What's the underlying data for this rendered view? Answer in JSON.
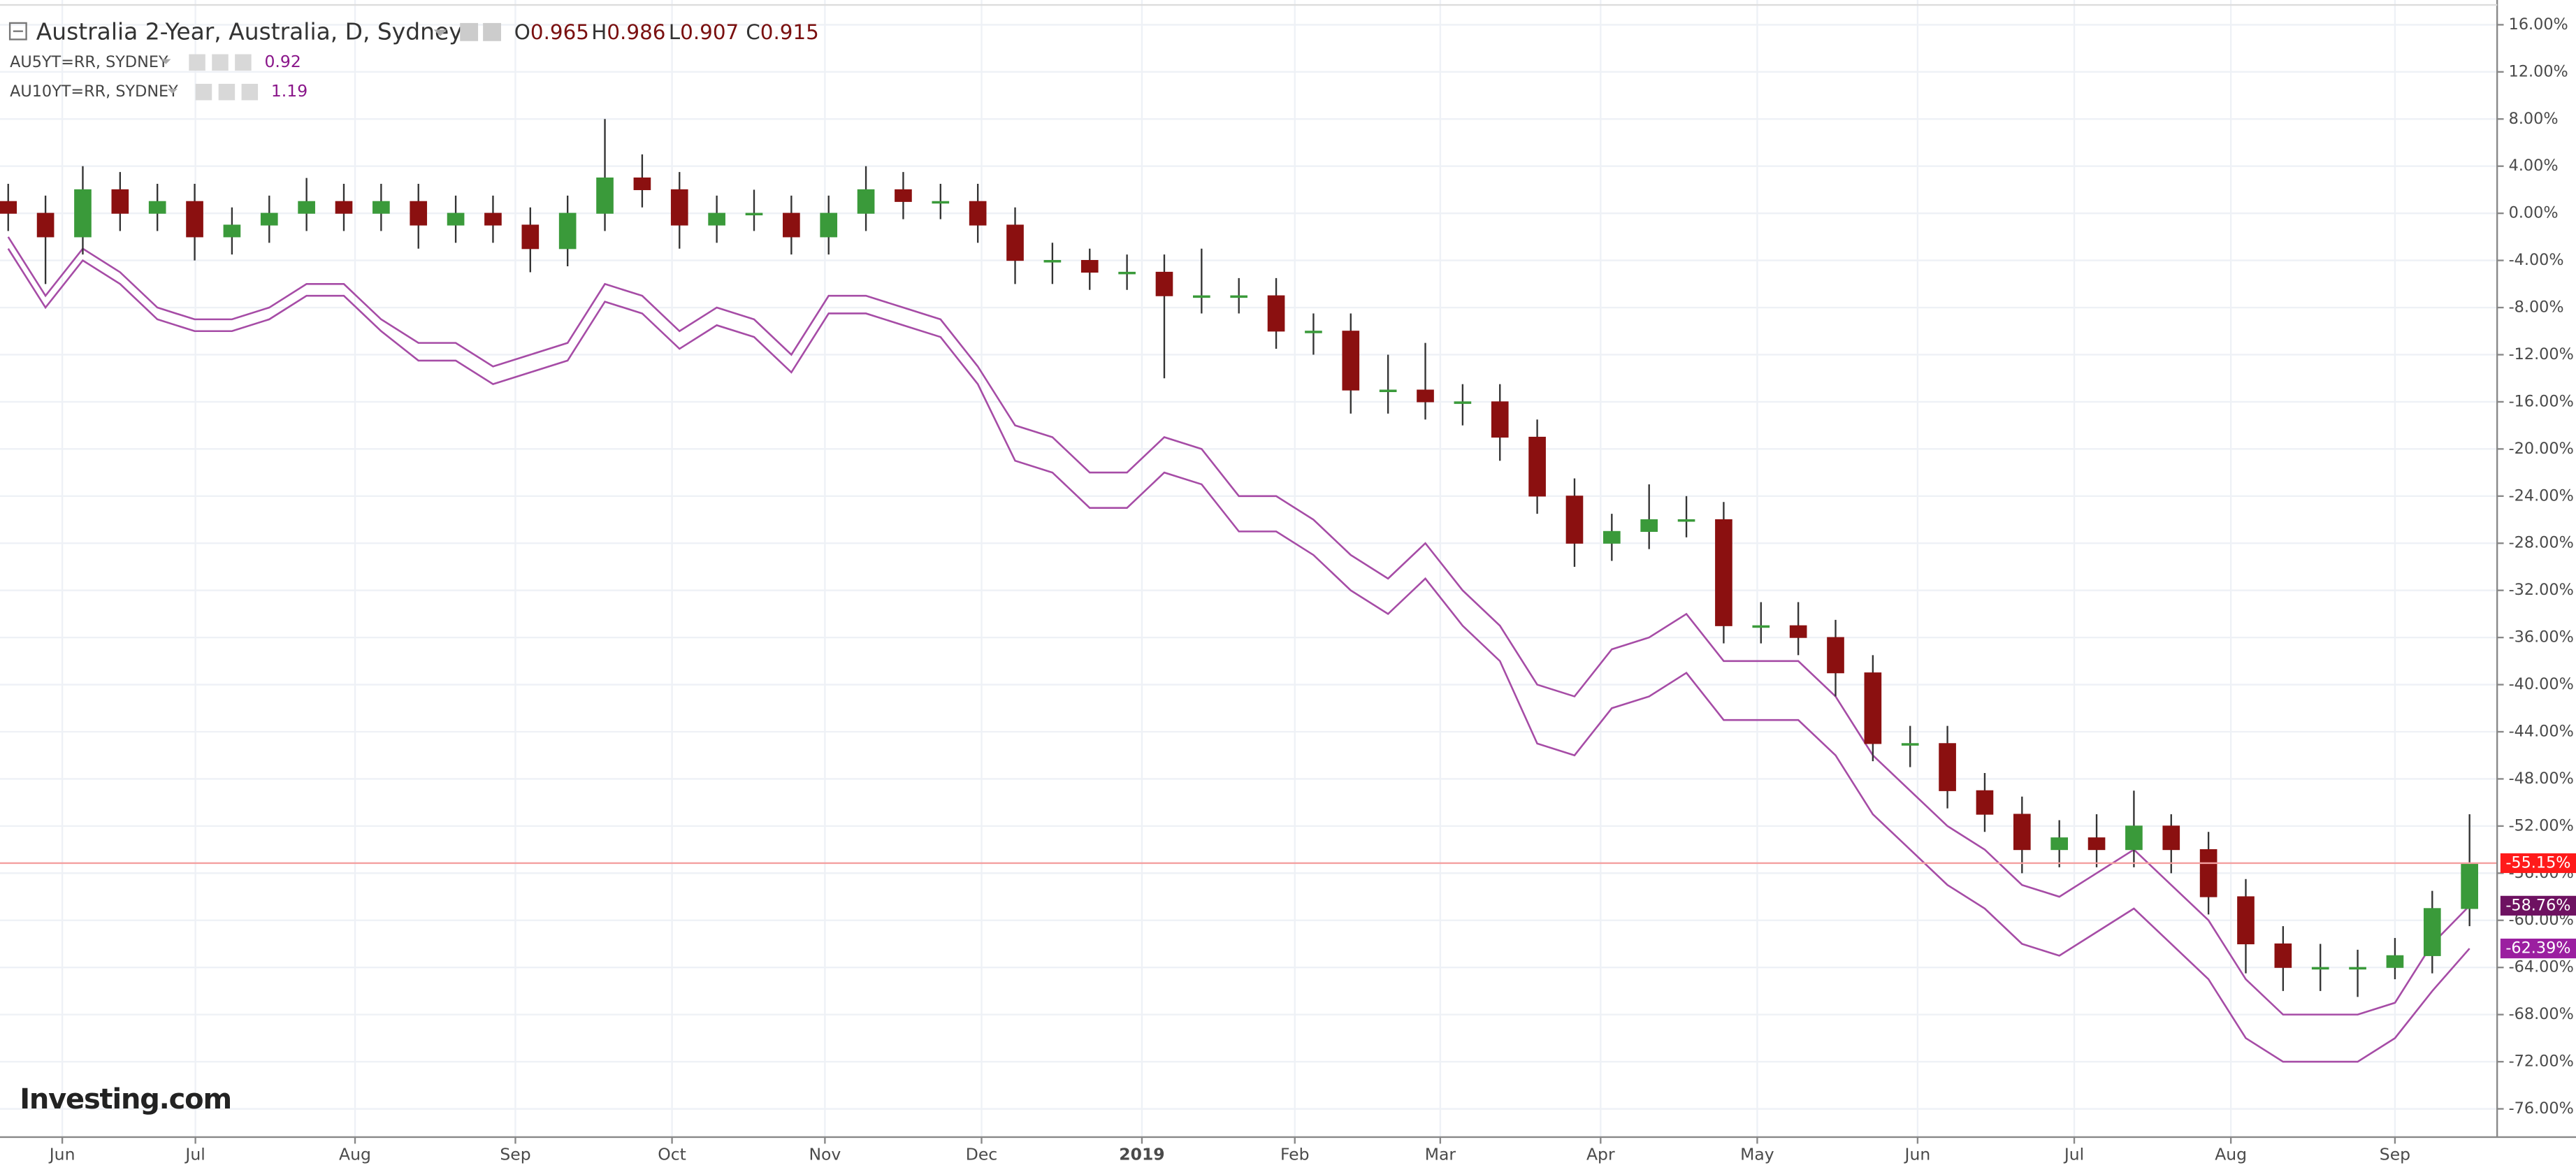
{
  "chart_data": {
    "type": "candlestick",
    "title": "Australia 2-Year, Australia, D, Sydney",
    "ohlc_legend": [
      {
        "label": "O",
        "value": 0.965
      },
      {
        "label": "H",
        "value": 0.986
      },
      {
        "label": "L",
        "value": 0.907
      },
      {
        "label": "C",
        "value": 0.915
      }
    ],
    "candles": {
      "up_color": "#3a9a3a",
      "down_color": "#8b1010",
      "last_label": "-55.15%",
      "last_color": "#ff1a1a",
      "open": [
        1,
        0,
        -2,
        2,
        0,
        1,
        -2,
        -1,
        0,
        1,
        0,
        1,
        -1,
        0,
        -1,
        -3,
        0,
        3,
        2,
        -1,
        0,
        0,
        -2,
        0,
        2,
        1,
        1,
        -1,
        -4,
        -4,
        -5,
        -5,
        -7,
        -7,
        -7,
        -10,
        -10,
        -15,
        -15,
        -16,
        -16,
        -19,
        -24,
        -28,
        -27,
        -26,
        -26,
        -35,
        -35,
        -36,
        -39,
        -45,
        -45,
        -49,
        -51,
        -54,
        -53,
        -54,
        -52,
        -54,
        -58,
        -62,
        -64,
        -64,
        -64,
        -63,
        -59
      ],
      "high": [
        2.5,
        1.5,
        4,
        3.5,
        2.5,
        2.5,
        0.5,
        1.5,
        3,
        2.5,
        2.5,
        2.5,
        1.5,
        1.5,
        0.5,
        1.5,
        8,
        5,
        3.5,
        1.5,
        2,
        1.5,
        1.5,
        4,
        3.5,
        2.5,
        2.5,
        0.5,
        -2.5,
        -3,
        -3.5,
        -3.5,
        -3,
        -5.5,
        -5.5,
        -8.5,
        -8.5,
        -12,
        -11,
        -14.5,
        -14.5,
        -17.5,
        -22.5,
        -25.5,
        -23,
        -24,
        -24.5,
        -33,
        -33,
        -34.5,
        -37.5,
        -43.5,
        -43.5,
        -47.5,
        -49.5,
        -51.5,
        -51,
        -49,
        -51,
        -52.5,
        -56.5,
        -60.5,
        -62,
        -62.5,
        -61.5,
        -57.5,
        -51
      ],
      "low": [
        -1.5,
        -6,
        -3.5,
        -1.5,
        -1.5,
        -4,
        -3.5,
        -2.5,
        -1.5,
        -1.5,
        -1.5,
        -3,
        -2.5,
        -2.5,
        -5,
        -4.5,
        -1.5,
        0.5,
        -3,
        -2.5,
        -1.5,
        -3.5,
        -3.5,
        -1.5,
        -0.5,
        -0.5,
        -2.5,
        -6,
        -6,
        -6.5,
        -6.5,
        -14,
        -8.5,
        -8.5,
        -11.5,
        -12,
        -17,
        -17,
        -17.5,
        -18,
        -21,
        -25.5,
        -30,
        -29.5,
        -28.5,
        -27.5,
        -36.5,
        -36.5,
        -37.5,
        -41,
        -46.5,
        -47,
        -50.5,
        -52.5,
        -56,
        -55.5,
        -55.5,
        -55.5,
        -56,
        -59.5,
        -64.5,
        -66,
        -66,
        -66.5,
        -65,
        -64.5,
        -60.5
      ],
      "close": [
        0,
        -2,
        2,
        0,
        1,
        -2,
        -1,
        0,
        1,
        0,
        1,
        -1,
        0,
        -1,
        -3,
        0,
        3,
        2,
        -1,
        0,
        0,
        -2,
        0,
        2,
        1,
        1,
        -1,
        -4,
        -4,
        -5,
        -5,
        -7,
        -7,
        -7,
        -10,
        -10,
        -15,
        -15,
        -16,
        -16,
        -19,
        -24,
        -28,
        -27,
        -26,
        -26,
        -35,
        -35,
        -36,
        -39,
        -45,
        -45,
        -49,
        -51,
        -54,
        -53,
        -54,
        -52,
        -54,
        -58,
        -62,
        -64,
        -64,
        -64,
        -63,
        -59,
        -55.15
      ]
    },
    "series": [
      {
        "name": "AU5YT=RR, SYDNEY",
        "value": 0.92,
        "color": "#a64ca6",
        "label_color": "#6e1261",
        "last_label": "-58.76%",
        "values": [
          -2,
          -7,
          -3,
          -5,
          -8,
          -9,
          -9,
          -8,
          -6,
          -6,
          -9,
          -11,
          -11,
          -13,
          -12,
          -11,
          -6,
          -7,
          -10,
          -8,
          -9,
          -12,
          -7,
          -7,
          -8,
          -9,
          -13,
          -18,
          -19,
          -22,
          -22,
          -19,
          -20,
          -24,
          -24,
          -26,
          -29,
          -31,
          -28,
          -32,
          -35,
          -40,
          -41,
          -37,
          -36,
          -34,
          -38,
          -38,
          -38,
          -41,
          -46,
          -49,
          -52,
          -54,
          -57,
          -58,
          -56,
          -54,
          -57,
          -60,
          -65,
          -68,
          -68,
          -68,
          -67,
          -62,
          -58.76
        ]
      },
      {
        "name": "AU10YT=RR, SYDNEY",
        "value": 1.19,
        "color": "#a64ca6",
        "label_color": "#9b1fa0",
        "last_label": "-62.39%",
        "values": [
          -3,
          -8,
          -4,
          -6,
          -9,
          -10,
          -10,
          -9,
          -7,
          -7,
          -10,
          -12.5,
          -12.5,
          -14.5,
          -13.5,
          -12.5,
          -7.5,
          -8.5,
          -11.5,
          -9.5,
          -10.5,
          -13.5,
          -8.5,
          -8.5,
          -9.5,
          -10.5,
          -14.5,
          -21,
          -22,
          -25,
          -25,
          -22,
          -23,
          -27,
          -27,
          -29,
          -32,
          -34,
          -31,
          -35,
          -38,
          -45,
          -46,
          -42,
          -41,
          -39,
          -43,
          -43,
          -43,
          -46,
          -51,
          -54,
          -57,
          -59,
          -62,
          -63,
          -61,
          -59,
          -62,
          -65,
          -70,
          -72,
          -72,
          -72,
          -70,
          -66,
          -62.39
        ]
      }
    ],
    "xlim": [
      -0.22,
      66.74
    ],
    "xticks": [
      {
        "value": 1.45,
        "label": "Jun"
      },
      {
        "value": 5.02,
        "label": "Jul"
      },
      {
        "value": 9.3,
        "label": "Aug"
      },
      {
        "value": 13.6,
        "label": "Sep"
      },
      {
        "value": 17.8,
        "label": "Oct"
      },
      {
        "value": 21.9,
        "label": "Nov"
      },
      {
        "value": 26.1,
        "label": "Dec"
      },
      {
        "value": 30.4,
        "label": "2019"
      },
      {
        "value": 34.5,
        "label": "Feb"
      },
      {
        "value": 38.4,
        "label": "Mar"
      },
      {
        "value": 42.7,
        "label": "Apr"
      },
      {
        "value": 46.9,
        "label": "May"
      },
      {
        "value": 51.2,
        "label": "Jun"
      },
      {
        "value": 55.4,
        "label": "Jul"
      },
      {
        "value": 59.6,
        "label": "Aug"
      },
      {
        "value": 64.0,
        "label": "Sep"
      }
    ],
    "ylim": [
      -78.4,
      18.1
    ],
    "yticks": [
      {
        "value": 16,
        "label": "16.00%"
      },
      {
        "value": 12,
        "label": "12.00%"
      },
      {
        "value": 8,
        "label": "8.00%"
      },
      {
        "value": 4,
        "label": "4.00%"
      },
      {
        "value": 0,
        "label": "0.00%"
      },
      {
        "value": -4,
        "label": "-4.00%"
      },
      {
        "value": -8,
        "label": "-8.00%"
      },
      {
        "value": -12,
        "label": "-12.00%"
      },
      {
        "value": -16,
        "label": "-16.00%"
      },
      {
        "value": -20,
        "label": "-20.00%"
      },
      {
        "value": -24,
        "label": "-24.00%"
      },
      {
        "value": -28,
        "label": "-28.00%"
      },
      {
        "value": -32,
        "label": "-32.00%"
      },
      {
        "value": -36,
        "label": "-36.00%"
      },
      {
        "value": -40,
        "label": "-40.00%"
      },
      {
        "value": -44,
        "label": "-44.00%"
      },
      {
        "value": -48,
        "label": "-48.00%"
      },
      {
        "value": -52,
        "label": "-52.00%"
      },
      {
        "value": -56,
        "label": "-56.00%"
      },
      {
        "value": -60,
        "label": "-60.00%"
      },
      {
        "value": -64,
        "label": "-64.00%"
      },
      {
        "value": -68,
        "label": "-68.00%"
      },
      {
        "value": -72,
        "label": "-72.00%"
      },
      {
        "value": -76,
        "label": "-76.00%"
      }
    ],
    "grid": true,
    "logo": "Investing.com"
  }
}
